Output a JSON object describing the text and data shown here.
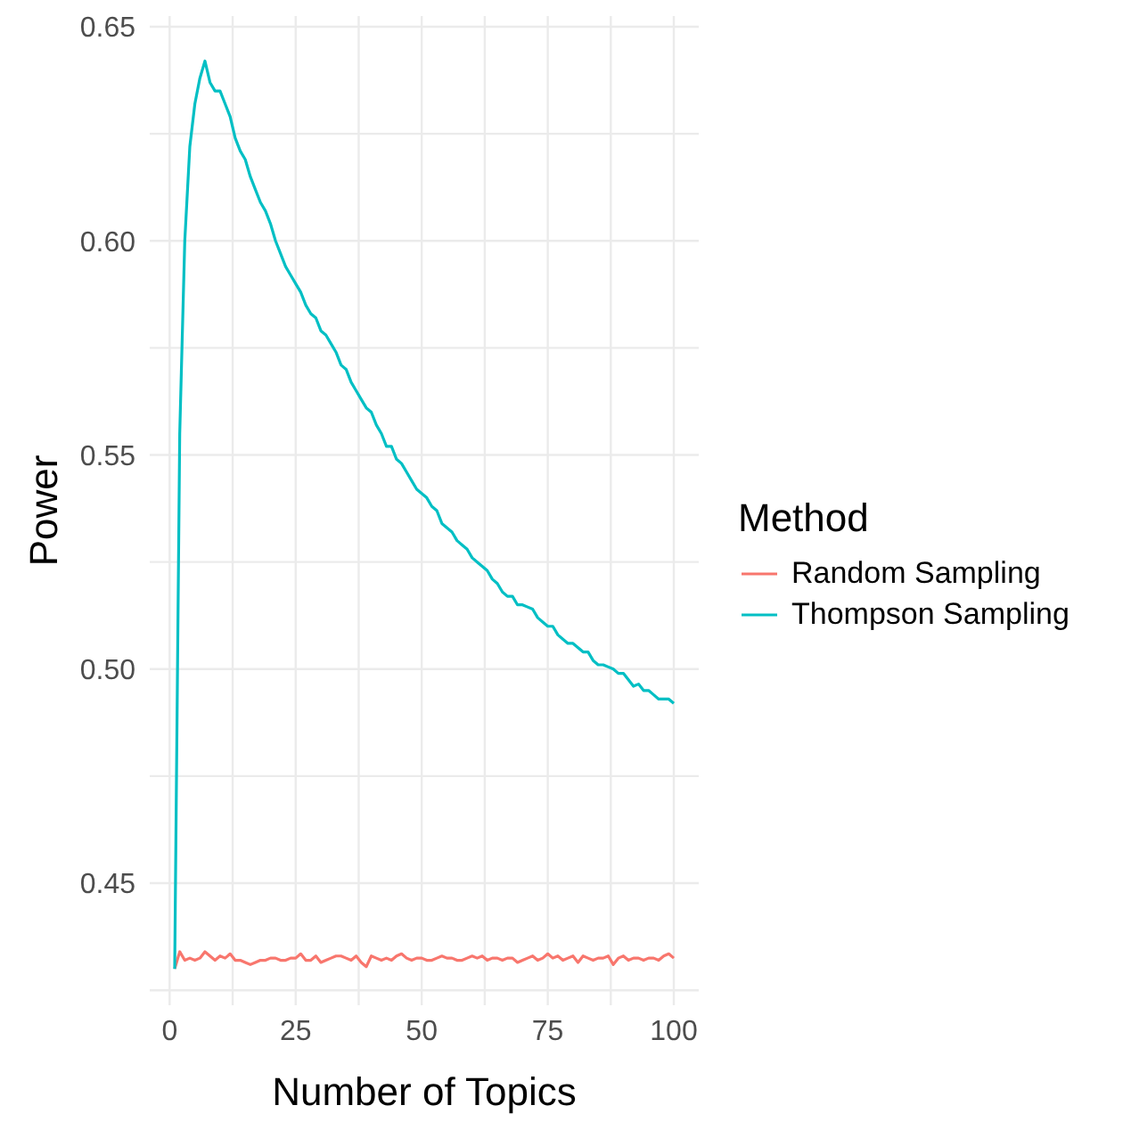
{
  "chart_data": {
    "type": "line",
    "xlabel": "Number of Topics",
    "ylabel": "Power",
    "legend_title": "Method",
    "legend": "right",
    "grid": true,
    "line_style": "solid",
    "marker": "none",
    "x": [
      1,
      2,
      3,
      4,
      5,
      6,
      7,
      8,
      9,
      10,
      11,
      12,
      13,
      14,
      15,
      16,
      17,
      18,
      19,
      20,
      21,
      22,
      23,
      24,
      25,
      26,
      27,
      28,
      29,
      30,
      31,
      32,
      33,
      34,
      35,
      36,
      37,
      38,
      39,
      40,
      41,
      42,
      43,
      44,
      45,
      46,
      47,
      48,
      49,
      50,
      51,
      52,
      53,
      54,
      55,
      56,
      57,
      58,
      59,
      60,
      61,
      62,
      63,
      64,
      65,
      66,
      67,
      68,
      69,
      70,
      71,
      72,
      73,
      74,
      75,
      76,
      77,
      78,
      79,
      80,
      81,
      82,
      83,
      84,
      85,
      86,
      87,
      88,
      89,
      90,
      91,
      92,
      93,
      94,
      95,
      96,
      97,
      98,
      99,
      100
    ],
    "xlim": [
      -3.95,
      104.95
    ],
    "xticks": [
      0,
      {
        "value": 12.5,
        "label": null
      },
      25,
      {
        "value": 37.5,
        "label": null
      },
      50,
      {
        "value": 62.5,
        "label": null
      },
      75,
      {
        "value": 87.5,
        "label": null
      },
      100
    ],
    "ylim": [
      0.4215,
      0.6525
    ],
    "yticks": [
      {
        "value": 0.425,
        "label": null
      },
      0.45,
      {
        "value": 0.475,
        "label": null
      },
      "0.50",
      {
        "value": 0.525,
        "label": null
      },
      0.55,
      {
        "value": 0.575,
        "label": null
      },
      "0.60",
      {
        "value": 0.625,
        "label": null
      },
      0.65
    ],
    "series": [
      {
        "name": "Random Sampling",
        "color": "#f8766d",
        "values": [
          0.43,
          0.434,
          0.432,
          0.4325,
          0.432,
          0.4325,
          0.434,
          0.433,
          0.432,
          0.433,
          0.4325,
          0.4335,
          0.432,
          0.432,
          0.4315,
          0.431,
          0.4315,
          0.432,
          0.432,
          0.4325,
          0.4325,
          0.432,
          0.432,
          0.4325,
          0.4325,
          0.4335,
          0.432,
          0.432,
          0.433,
          0.4315,
          0.432,
          0.4325,
          0.433,
          0.433,
          0.4325,
          0.432,
          0.433,
          0.4315,
          0.4305,
          0.433,
          0.4325,
          0.432,
          0.4325,
          0.432,
          0.433,
          0.4335,
          0.4325,
          0.432,
          0.4325,
          0.4325,
          0.432,
          0.432,
          0.4325,
          0.433,
          0.4325,
          0.4325,
          0.432,
          0.432,
          0.4325,
          0.433,
          0.4325,
          0.433,
          0.432,
          0.4325,
          0.4325,
          0.432,
          0.4325,
          0.4325,
          0.4315,
          0.432,
          0.4325,
          0.433,
          0.432,
          0.4325,
          0.4335,
          0.4325,
          0.433,
          0.432,
          0.4325,
          0.433,
          0.4315,
          0.433,
          0.4325,
          0.432,
          0.4325,
          0.4325,
          0.433,
          0.431,
          0.4325,
          0.433,
          0.432,
          0.4325,
          0.4325,
          0.432,
          0.4325,
          0.4325,
          0.432,
          0.433,
          0.4335,
          0.4325
        ]
      },
      {
        "name": "Thompson Sampling",
        "color": "#00bfc4",
        "values": [
          0.43,
          0.555,
          0.6,
          0.622,
          0.632,
          0.638,
          0.642,
          0.637,
          0.635,
          0.635,
          0.632,
          0.629,
          0.624,
          0.621,
          0.619,
          0.615,
          0.612,
          0.609,
          0.607,
          0.604,
          0.6,
          0.597,
          0.594,
          0.592,
          0.59,
          0.588,
          0.585,
          0.583,
          0.582,
          0.579,
          0.578,
          0.576,
          0.574,
          0.571,
          0.57,
          0.567,
          0.565,
          0.563,
          0.561,
          0.56,
          0.557,
          0.555,
          0.552,
          0.552,
          0.549,
          0.548,
          0.546,
          0.544,
          0.542,
          0.541,
          0.54,
          0.538,
          0.537,
          0.534,
          0.533,
          0.532,
          0.53,
          0.529,
          0.528,
          0.526,
          0.525,
          0.524,
          0.523,
          0.521,
          0.52,
          0.518,
          0.517,
          0.517,
          0.515,
          0.515,
          0.5145,
          0.514,
          0.512,
          0.511,
          0.51,
          0.51,
          0.508,
          0.507,
          0.506,
          0.506,
          0.505,
          0.504,
          0.504,
          0.502,
          0.501,
          0.501,
          0.5005,
          0.5,
          0.499,
          0.499,
          0.4975,
          0.496,
          0.4965,
          0.495,
          0.495,
          0.494,
          0.493,
          0.493,
          0.493,
          0.492
        ]
      }
    ]
  }
}
